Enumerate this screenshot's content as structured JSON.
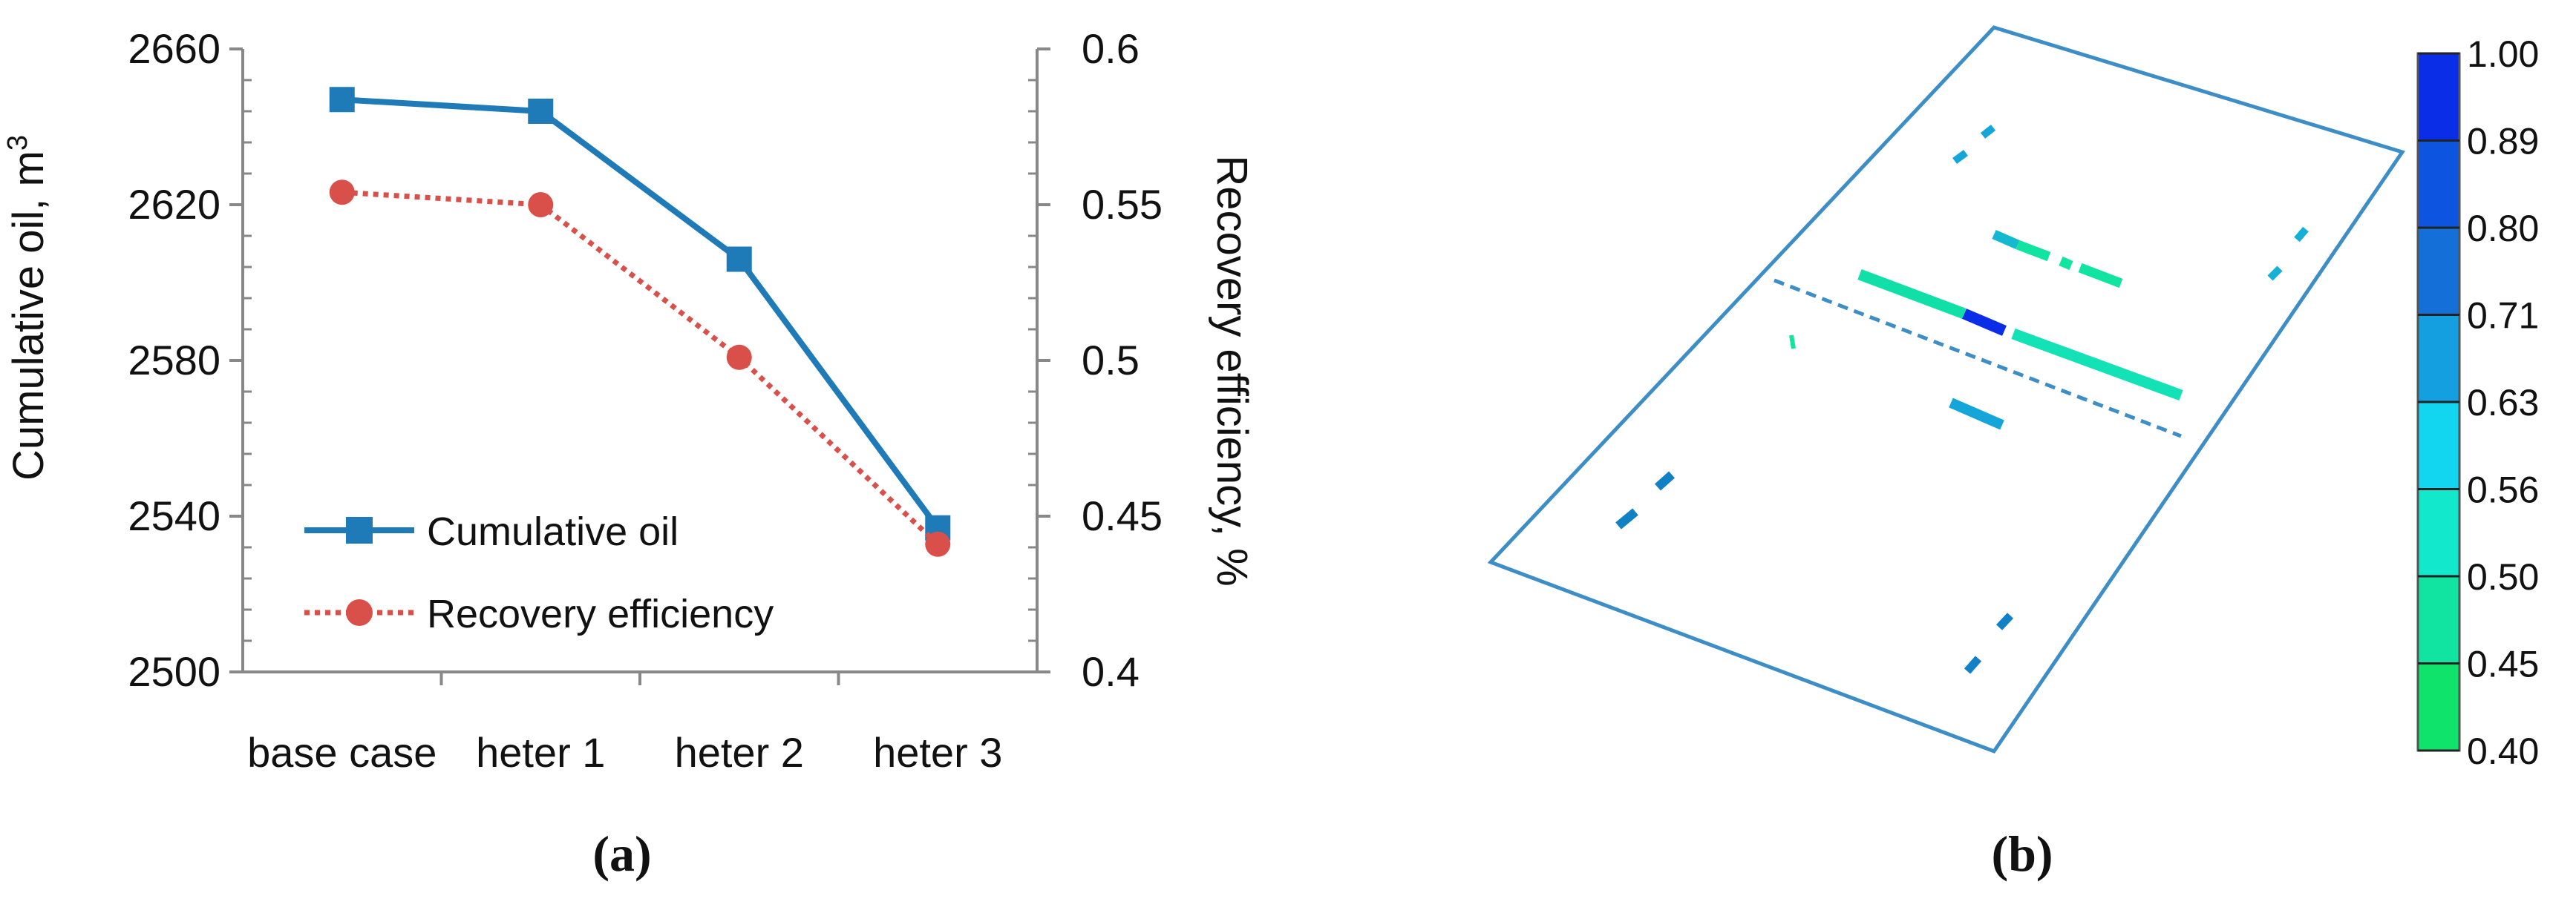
{
  "chart_data": [
    {
      "type": "line",
      "panel_label": "(a)",
      "categories": [
        "base case",
        "heter 1",
        "heter 2",
        "heter 3"
      ],
      "ylabel": "Cumulative oil, m",
      "ylabel_superscript": "3",
      "y2label": "Recovery efficiency, %",
      "ylim": [
        2500,
        2660
      ],
      "y2lim": [
        0.4,
        0.6
      ],
      "yticks": [
        "2500",
        "2540",
        "2580",
        "2620",
        "2660"
      ],
      "y2ticks": [
        "0.4",
        "0.45",
        "0.5",
        "0.55",
        "0.6"
      ],
      "legend_position": "lower-left",
      "series": [
        {
          "name": "Cumulative oil",
          "axis": "left",
          "values": [
            2647,
            2644,
            2606,
            2537
          ],
          "color": "#1f7ab8",
          "style": "solid",
          "marker": "square"
        },
        {
          "name": "Recovery efficiency",
          "axis": "right",
          "values": [
            0.554,
            0.55,
            0.501,
            0.441
          ],
          "color": "#d9504a",
          "style": "dotted",
          "marker": "circle"
        }
      ]
    },
    {
      "type": "heatmap",
      "panel_label": "(b)",
      "colorbar": {
        "labels": [
          "1.00",
          "0.89",
          "0.80",
          "0.71",
          "0.63",
          "0.56",
          "0.50",
          "0.45",
          "0.40"
        ],
        "colors": [
          "#0a2de8",
          "#0d54e0",
          "#1470d8",
          "#14a0e0",
          "#12d6ef",
          "#12e8cc",
          "#10e4a0",
          "#0fe36b"
        ]
      },
      "colors": {
        "outline": "#3d8ec7"
      }
    }
  ]
}
